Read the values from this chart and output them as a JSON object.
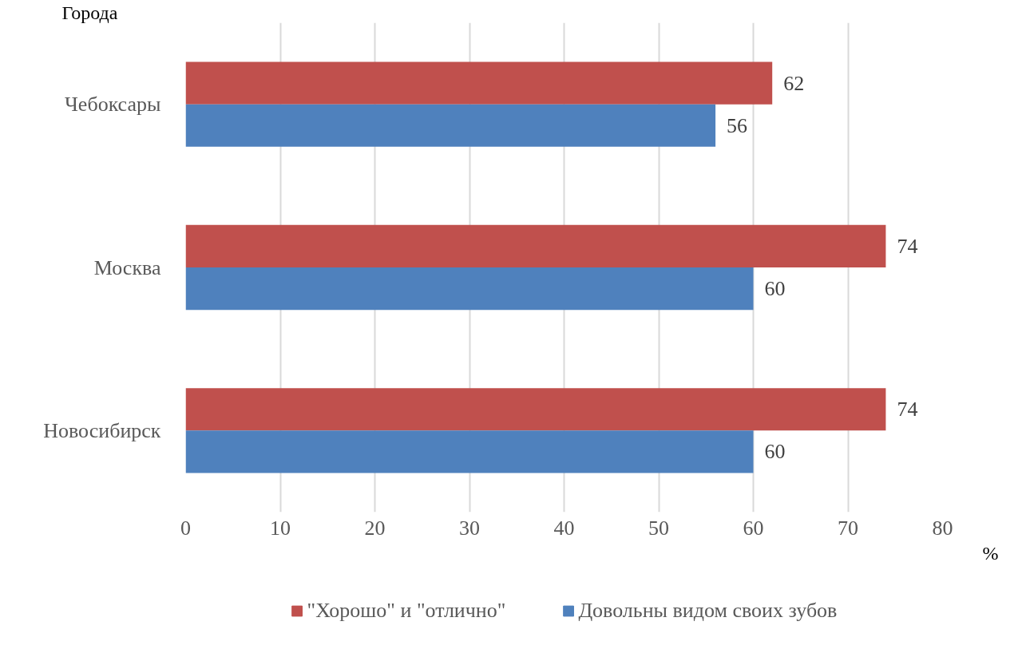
{
  "chart_data": {
    "type": "bar",
    "orientation": "horizontal",
    "xlabel": "%",
    "ylabel": "Города",
    "categories": [
      "Чебоксары",
      "Москва",
      "Новосибирск"
    ],
    "series": [
      {
        "name": "\"Хорошо\" и \"отлично\"",
        "color": "#c0504d",
        "values": [
          62,
          74,
          74
        ]
      },
      {
        "name": "Довольны видом своих зубов",
        "color": "#4f81bd",
        "values": [
          56,
          60,
          60
        ]
      }
    ],
    "xlim": [
      0,
      80
    ],
    "xticks": [
      0,
      10,
      20,
      30,
      40,
      50,
      60,
      70,
      80
    ],
    "grid": "x",
    "legend": "bottom",
    "data_labels": true
  }
}
